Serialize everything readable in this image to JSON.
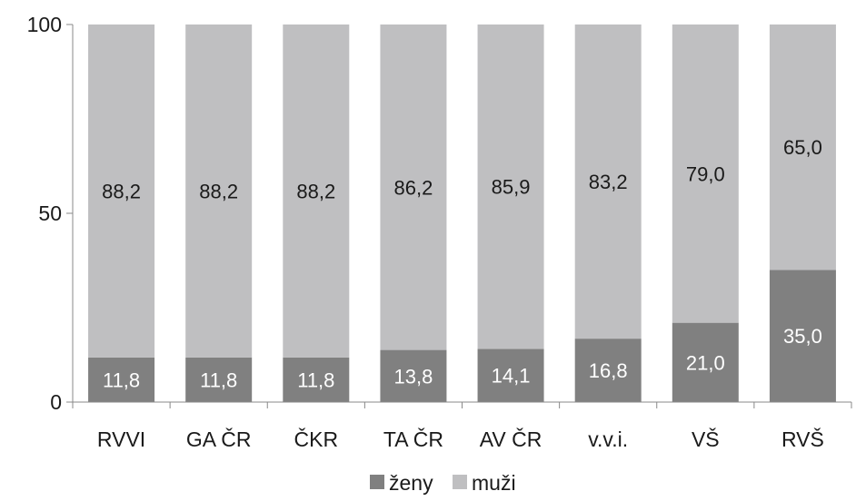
{
  "chart_data": {
    "type": "bar",
    "stacked": true,
    "categories": [
      "RVVI",
      "GA ČR",
      "ČKR",
      "TA ČR",
      "AV ČR",
      "v.v.i.",
      "VŠ",
      "RVŠ"
    ],
    "series": [
      {
        "name": "ženy",
        "color": "#808080",
        "values": [
          11.8,
          11.8,
          11.8,
          13.8,
          14.1,
          16.8,
          21.0,
          35.0
        ],
        "labels": [
          "11,8",
          "11,8",
          "11,8",
          "13,8",
          "14,1",
          "16,8",
          "21,0",
          "35,0"
        ]
      },
      {
        "name": "muži",
        "color": "#bfbfc1",
        "values": [
          88.2,
          88.2,
          88.2,
          86.2,
          85.9,
          83.2,
          79.0,
          65.0
        ],
        "labels": [
          "88,2",
          "88,2",
          "88,2",
          "86,2",
          "85,9",
          "83,2",
          "79,0",
          "65,0"
        ]
      }
    ],
    "y_ticks": [
      "0",
      "50",
      "100"
    ],
    "ylim": [
      0,
      100
    ],
    "grid": false,
    "legend_position": "bottom"
  }
}
